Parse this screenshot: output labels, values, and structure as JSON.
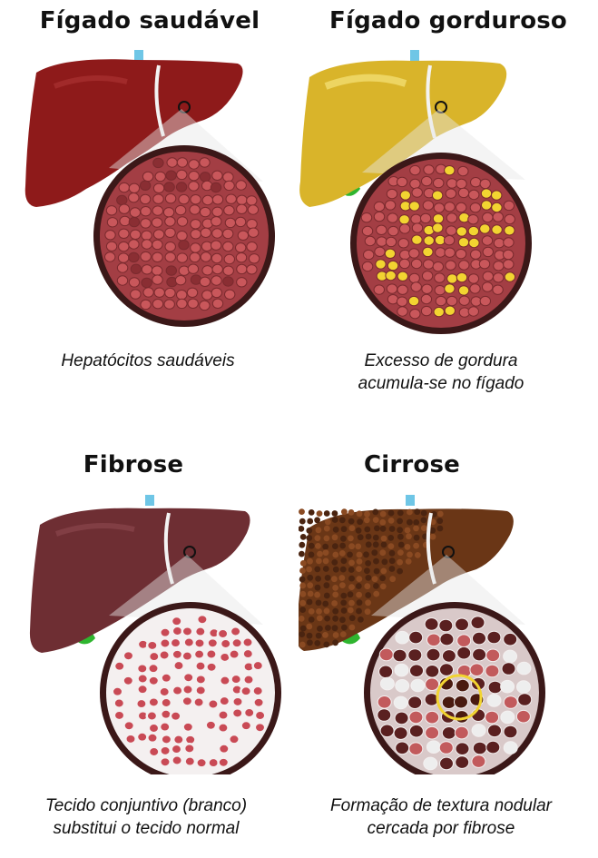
{
  "panels": [
    {
      "title": "Fígado saudável",
      "caption": [
        "Hepatócitos saudáveis"
      ]
    },
    {
      "title": "Fígado gorduroso",
      "caption": [
        "Excesso de gordura",
        "acumula-se no fígado"
      ]
    },
    {
      "title": "Fibrose",
      "caption": [
        "Tecido conjuntivo (branco)",
        "substitui o tecido normal"
      ]
    },
    {
      "title": "Cirrose",
      "caption": [
        "Formação de textura nodular",
        "cercada por fibrose"
      ]
    }
  ],
  "colors": {
    "healthy_liver": "#8e1a1a",
    "fatty_liver": "#d9b42a",
    "fibrosis_liver": "#6e2e33",
    "cirrhosis_liver": "#6a3616",
    "cell": "#c9575b",
    "fat": "#f2d431",
    "fibrous_tissue": "#f4f0f0",
    "gallbladder": "#2fb52f",
    "portal_vein": "#6fc6e6"
  }
}
